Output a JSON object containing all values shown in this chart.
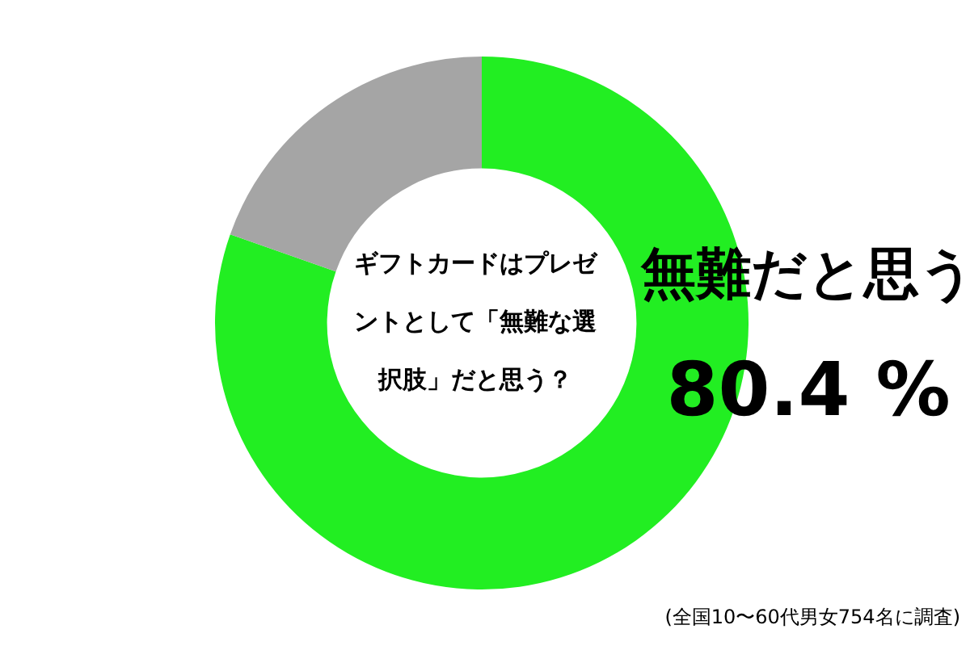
{
  "chart_data": {
    "type": "donut",
    "title": "ギフトカードはプレゼントとして「無難な選択肢」だと思う？",
    "categories": [
      "無難だと思う",
      null
    ],
    "values": [
      80.4,
      19.6
    ],
    "colors": [
      "#22ee22",
      "#a5a5a5"
    ],
    "value_labels": [
      "80.4 %",
      null
    ],
    "legend": false,
    "annotations": [
      "(全国10〜60代男女754名に調査)"
    ]
  }
}
